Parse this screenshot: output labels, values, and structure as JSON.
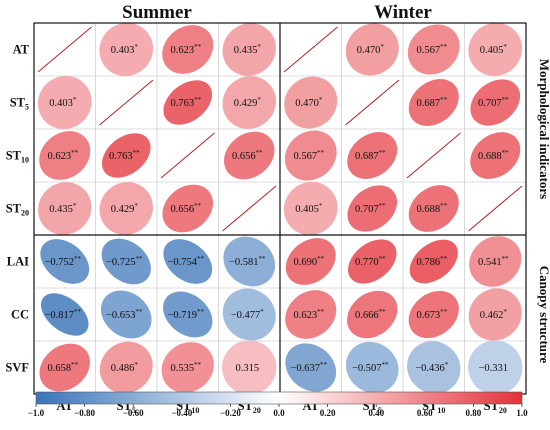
{
  "chart_data": {
    "type": "heatmap",
    "panels": [
      {
        "title": "Summer",
        "matrix": [
          [
            null,
            0.403,
            0.623,
            0.435
          ],
          [
            0.403,
            null,
            0.763,
            0.429
          ],
          [
            0.623,
            0.763,
            null,
            0.656
          ],
          [
            0.435,
            0.429,
            0.656,
            null
          ],
          [
            -0.752,
            -0.725,
            -0.754,
            -0.581
          ],
          [
            -0.817,
            -0.653,
            -0.719,
            -0.477
          ],
          [
            0.658,
            0.486,
            0.535,
            0.315
          ]
        ],
        "significance": [
          [
            "",
            "*",
            "**",
            "*"
          ],
          [
            "*",
            "",
            "**",
            "*"
          ],
          [
            "**",
            "**",
            "",
            "**"
          ],
          [
            "*",
            "*",
            "**",
            ""
          ],
          [
            "**",
            "**",
            "**",
            "**"
          ],
          [
            "**",
            "**",
            "**",
            "*"
          ],
          [
            "**",
            "*",
            "**",
            ""
          ]
        ],
        "labels": [
          [
            "",
            "0.403",
            "0.623",
            "0.435"
          ],
          [
            "0.403",
            "",
            "0.763",
            "0.429"
          ],
          [
            "0.623",
            "0.763",
            "",
            "0.656"
          ],
          [
            "0.435",
            "0.429",
            "0.656",
            ""
          ],
          [
            "−0.752",
            "−0.725",
            "−0.754",
            "−0.581"
          ],
          [
            "−0.817",
            "−0.653",
            "−0.719",
            "−0.477"
          ],
          [
            "0.658",
            "0.486",
            "0.535",
            "0.315"
          ]
        ]
      },
      {
        "title": "Winter",
        "matrix": [
          [
            null,
            0.47,
            0.567,
            0.405
          ],
          [
            0.47,
            null,
            0.687,
            0.707
          ],
          [
            0.567,
            0.687,
            null,
            0.688
          ],
          [
            0.405,
            0.707,
            0.688,
            null
          ],
          [
            0.69,
            0.77,
            0.786,
            0.541
          ],
          [
            0.623,
            0.666,
            0.673,
            0.462
          ],
          [
            -0.637,
            -0.507,
            -0.436,
            -0.331
          ]
        ],
        "significance": [
          [
            "",
            "*",
            "**",
            "*"
          ],
          [
            "*",
            "",
            "**",
            "**"
          ],
          [
            "**",
            "**",
            "",
            "**"
          ],
          [
            "*",
            "**",
            "**",
            ""
          ],
          [
            "**",
            "**",
            "**",
            "**"
          ],
          [
            "**",
            "**",
            "**",
            "*"
          ],
          [
            "**",
            "**",
            "*",
            ""
          ]
        ],
        "labels": [
          [
            "",
            "0.470",
            "0.567",
            "0.405"
          ],
          [
            "0.470",
            "",
            "0.687",
            "0.707"
          ],
          [
            "0.567",
            "0.687",
            "",
            "0.688"
          ],
          [
            "0.405",
            "0.707",
            "0.688",
            ""
          ],
          [
            "0.690",
            "0.770",
            "0.786",
            "0.541"
          ],
          [
            "0.623",
            "0.666",
            "0.673",
            "0.462"
          ],
          [
            "−0.637",
            "−0.507",
            "−0.436",
            "−0.331"
          ]
        ]
      }
    ],
    "row_labels": [
      {
        "base": "AT",
        "sub": ""
      },
      {
        "base": "ST",
        "sub": "5"
      },
      {
        "base": "ST",
        "sub": "10"
      },
      {
        "base": "ST",
        "sub": "20"
      },
      {
        "base": "LAI",
        "sub": ""
      },
      {
        "base": "CC",
        "sub": ""
      },
      {
        "base": "SVF",
        "sub": ""
      }
    ],
    "col_labels": [
      {
        "base": "AT",
        "sub": ""
      },
      {
        "base": "ST",
        "sub": "5"
      },
      {
        "base": "ST",
        "sub": "10"
      },
      {
        "base": "ST",
        "sub": "20"
      }
    ],
    "groups": [
      {
        "label": "Morphological indicators",
        "rows": [
          0,
          3
        ]
      },
      {
        "label": "Canopy structure",
        "rows": [
          4,
          6
        ]
      }
    ],
    "colorbar": {
      "min": -1.0,
      "max": 1.0,
      "ticks": [
        -1.0,
        -0.8,
        -0.6,
        -0.4,
        -0.2,
        0.0,
        0.2,
        0.4,
        0.6,
        0.8,
        1.0
      ],
      "tick_labels": [
        "−1.0",
        "−0.80",
        "−0.60",
        "−0.40",
        "−0.20",
        "0.0",
        "0.20",
        "0.40",
        "0.60",
        "0.80",
        "1.0"
      ]
    },
    "colors": {
      "negative": "#3a74b9",
      "neutral": "#ffffff",
      "positive": "#e4323a",
      "diagonal_line": "#b22222"
    }
  }
}
